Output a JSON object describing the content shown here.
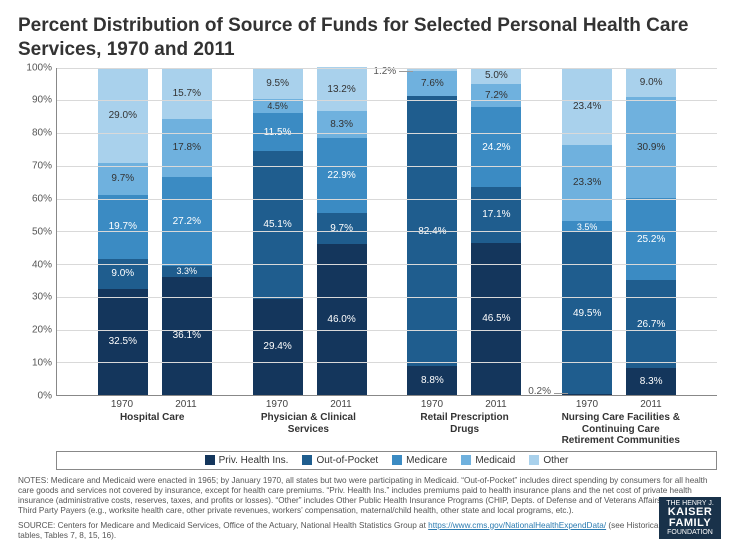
{
  "title": "Percent Distribution of Source of Funds for Selected Personal Health Care Services, 1970 and 2011",
  "title_fontsize": 19,
  "chart": {
    "type": "stacked-bar-100",
    "ylim": [
      0,
      100
    ],
    "ytick_step": 10,
    "ytick_suffix": "%",
    "grid_color": "#d9d9d9",
    "axis_color": "#888888",
    "background_color": "#ffffff",
    "series": [
      {
        "key": "priv",
        "label": "Priv. Health Ins.",
        "color": "#14365c"
      },
      {
        "key": "oop",
        "label": "Out-of-Pocket",
        "color": "#1f5d8e"
      },
      {
        "key": "medicare",
        "label": "Medicare",
        "color": "#3b8bc3"
      },
      {
        "key": "medicaid",
        "label": "Medicaid",
        "color": "#6fb1de"
      },
      {
        "key": "other",
        "label": "Other",
        "color": "#a9d1ec"
      }
    ],
    "categories": [
      {
        "label": "Hospital Care",
        "bars": [
          {
            "x": "1970",
            "values": {
              "priv": 32.5,
              "oop": 9.0,
              "medicare": 19.7,
              "medicaid": 9.7,
              "other": 29.0
            }
          },
          {
            "x": "2011",
            "values": {
              "priv": 36.1,
              "oop": 3.3,
              "medicare": 27.2,
              "medicaid": 17.8,
              "other": 15.7
            }
          }
        ]
      },
      {
        "label": "Physician & Clinical Services",
        "bars": [
          {
            "x": "1970",
            "values": {
              "priv": 29.4,
              "oop": 45.1,
              "medicare": 11.5,
              "medicaid": 4.5,
              "other": 9.5
            }
          },
          {
            "x": "2011",
            "values": {
              "priv": 46.0,
              "oop": 9.7,
              "medicare": 22.9,
              "medicaid": 8.3,
              "other": 13.2
            }
          }
        ]
      },
      {
        "label": "Retail Prescription Drugs",
        "bars": [
          {
            "x": "1970",
            "values": {
              "priv": 8.8,
              "oop": 82.4,
              "medicare": 0.0,
              "medicaid": 7.6,
              "other": 1.2
            },
            "callouts": {
              "other": "1.2%"
            }
          },
          {
            "x": "2011",
            "values": {
              "priv": 46.5,
              "oop": 17.1,
              "medicare": 24.2,
              "medicaid": 7.2,
              "other": 5.0
            }
          }
        ]
      },
      {
        "label": "Nursing Care Facilities & Continuing Care Retirement Communities",
        "bars": [
          {
            "x": "1970",
            "values": {
              "priv": 0.2,
              "oop": 49.5,
              "medicare": 3.5,
              "medicaid": 23.3,
              "other": 23.4
            },
            "callouts": {
              "priv": "0.2%"
            }
          },
          {
            "x": "2011",
            "values": {
              "priv": 8.3,
              "oop": 26.7,
              "medicare": 25.2,
              "medicaid": 30.9,
              "other": 9.0
            }
          }
        ]
      }
    ],
    "label_fontsize": 10,
    "label_color_on_bar": "#ffffff"
  },
  "notes": "NOTES: Medicare and Medicaid were enacted in 1965; by January 1970, all states but two were participating in Medicaid. “Out-of-Pocket” includes direct spending by consumers for all health care goods and services not covered by insurance, except for health care premiums. “Priv. Health Ins.” includes premiums paid to health insurance plans and the net cost of private health insurance (administrative costs, reserves, taxes, and profits or losses). “Other” includes Other Public Health Insurance Programs (CHIP, Depts. of Defense and of Veterans Affairs) and Other Third Party Payers (e.g., worksite health care, other private revenues, workers’ compensation, maternal/child health, other state and local programs, etc.).",
  "source_prefix": "SOURCE: Centers for Medicare and Medicaid Services, Office of the Actuary, National Health Statistics Group at ",
  "source_link": "https://www.cms.gov/NationalHealthExpendData/",
  "source_suffix": " (see Historical; NHE Web tables, Tables 7, 8, 15, 16).",
  "logo": {
    "line1": "THE HENRY J.",
    "line2": "KAISER",
    "line3": "FAMILY",
    "line4": "FOUNDATION",
    "bg": "#19324a",
    "fg": "#ffffff"
  }
}
